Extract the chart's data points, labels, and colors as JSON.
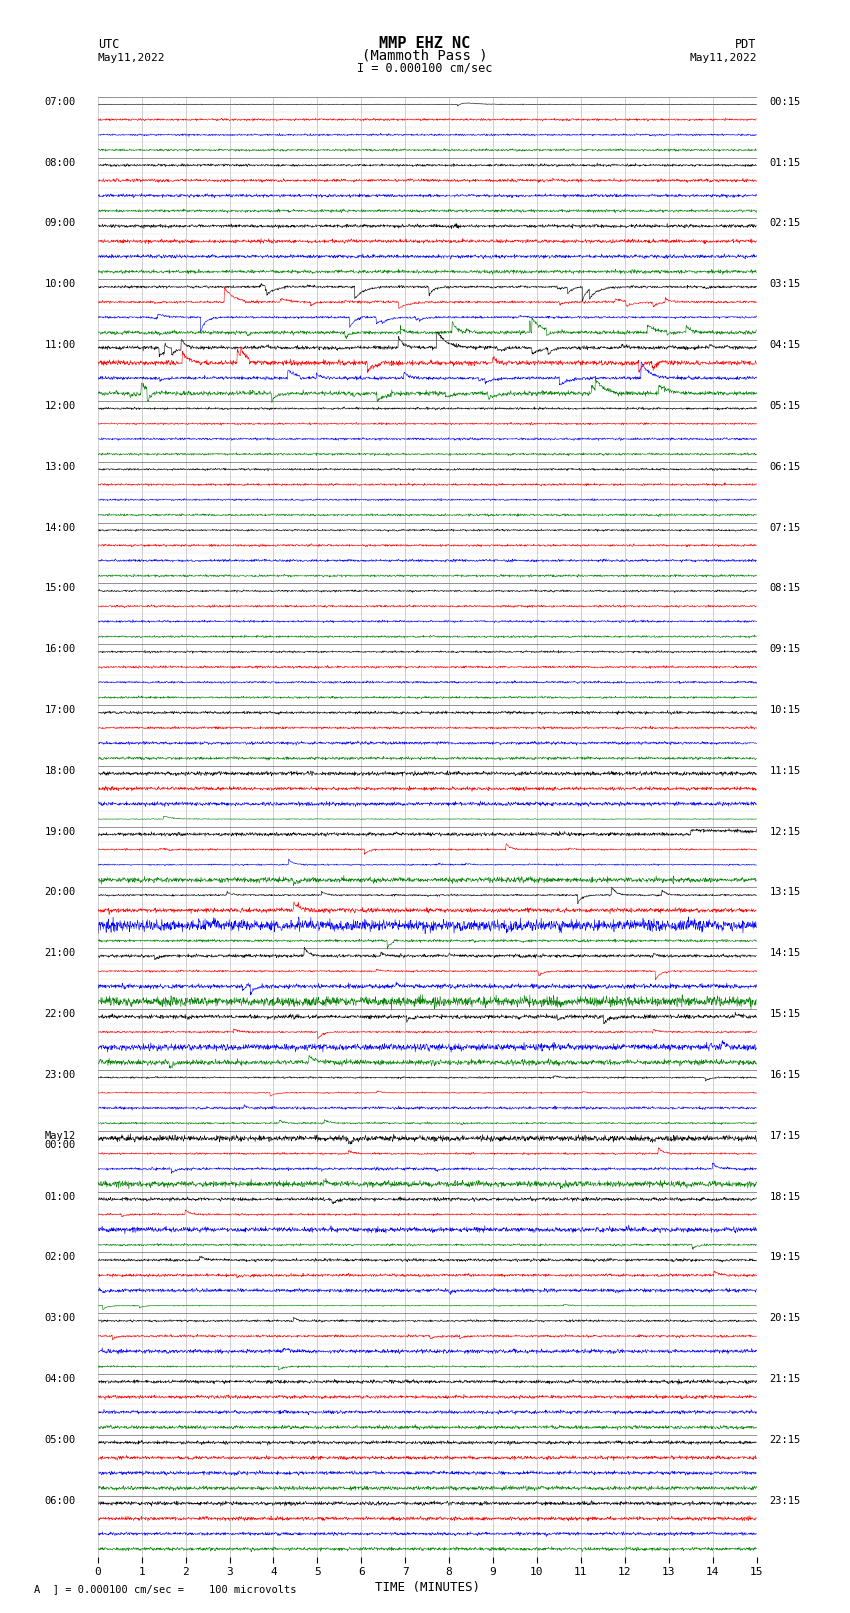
{
  "title_line1": "MMP EHZ NC",
  "title_line2": "(Mammoth Pass )",
  "title_line3": "I = 0.000100 cm/sec",
  "label_left_top": "UTC",
  "label_left_date": "May11,2022",
  "label_right_top": "PDT",
  "label_right_date": "May11,2022",
  "xlabel": "TIME (MINUTES)",
  "footer": "A  ] = 0.000100 cm/sec =    100 microvolts",
  "utc_labels": [
    "07:00",
    "08:00",
    "09:00",
    "10:00",
    "11:00",
    "12:00",
    "13:00",
    "14:00",
    "15:00",
    "16:00",
    "17:00",
    "18:00",
    "19:00",
    "20:00",
    "21:00",
    "22:00",
    "23:00",
    "May12\n00:00",
    "01:00",
    "02:00",
    "03:00",
    "04:00",
    "05:00",
    "06:00"
  ],
  "pdt_labels": [
    "00:15",
    "01:15",
    "02:15",
    "03:15",
    "04:15",
    "05:15",
    "06:15",
    "07:15",
    "08:15",
    "09:15",
    "10:15",
    "11:15",
    "12:15",
    "13:15",
    "14:15",
    "15:15",
    "16:15",
    "17:15",
    "18:15",
    "19:15",
    "20:15",
    "21:15",
    "22:15",
    "23:15"
  ],
  "n_hours": 24,
  "traces_per_hour": 4,
  "colors": [
    "black",
    "red",
    "blue",
    "green"
  ],
  "bg_color": "white",
  "grid_color": "#888888",
  "xlim": [
    0,
    15
  ],
  "xticks": [
    0,
    1,
    2,
    3,
    4,
    5,
    6,
    7,
    8,
    9,
    10,
    11,
    12,
    13,
    14,
    15
  ],
  "n_pts": 1800
}
